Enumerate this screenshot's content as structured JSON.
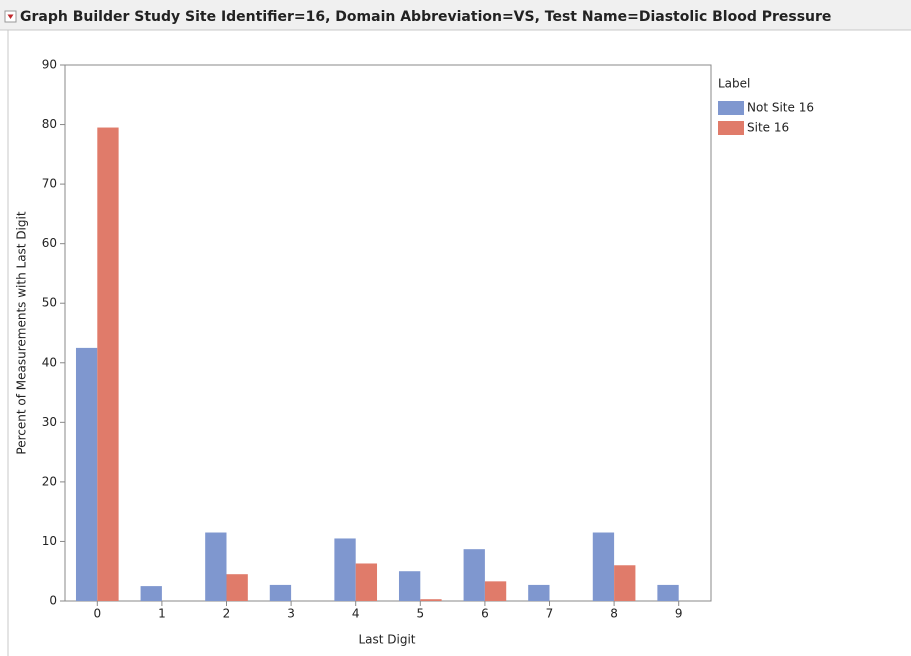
{
  "chart_data": {
    "type": "bar",
    "title": "Graph Builder Study Site Identifier=16, Domain Abbreviation=VS, Test Name=Diastolic Blood Pressure",
    "x_label": "Last Digit",
    "y_label": "Percent of Measurements with Last Digit",
    "legend_title": "Label",
    "legend_position": "right",
    "categories": [
      "0",
      "1",
      "2",
      "3",
      "4",
      "5",
      "6",
      "7",
      "8",
      "9"
    ],
    "series": [
      {
        "name": "Not Site 16",
        "color": "#7f97cf",
        "values": [
          42.5,
          2.5,
          11.5,
          2.7,
          10.5,
          5.0,
          8.7,
          2.7,
          11.5,
          2.7
        ]
      },
      {
        "name": "Site 16",
        "color": "#e07b6a",
        "values": [
          79.5,
          0,
          4.5,
          0,
          6.3,
          0.3,
          3.3,
          0,
          6.0,
          0
        ]
      }
    ],
    "ylim": [
      0,
      90
    ],
    "yticks": [
      0,
      10,
      20,
      30,
      40,
      50,
      60,
      70,
      80,
      90
    ]
  }
}
